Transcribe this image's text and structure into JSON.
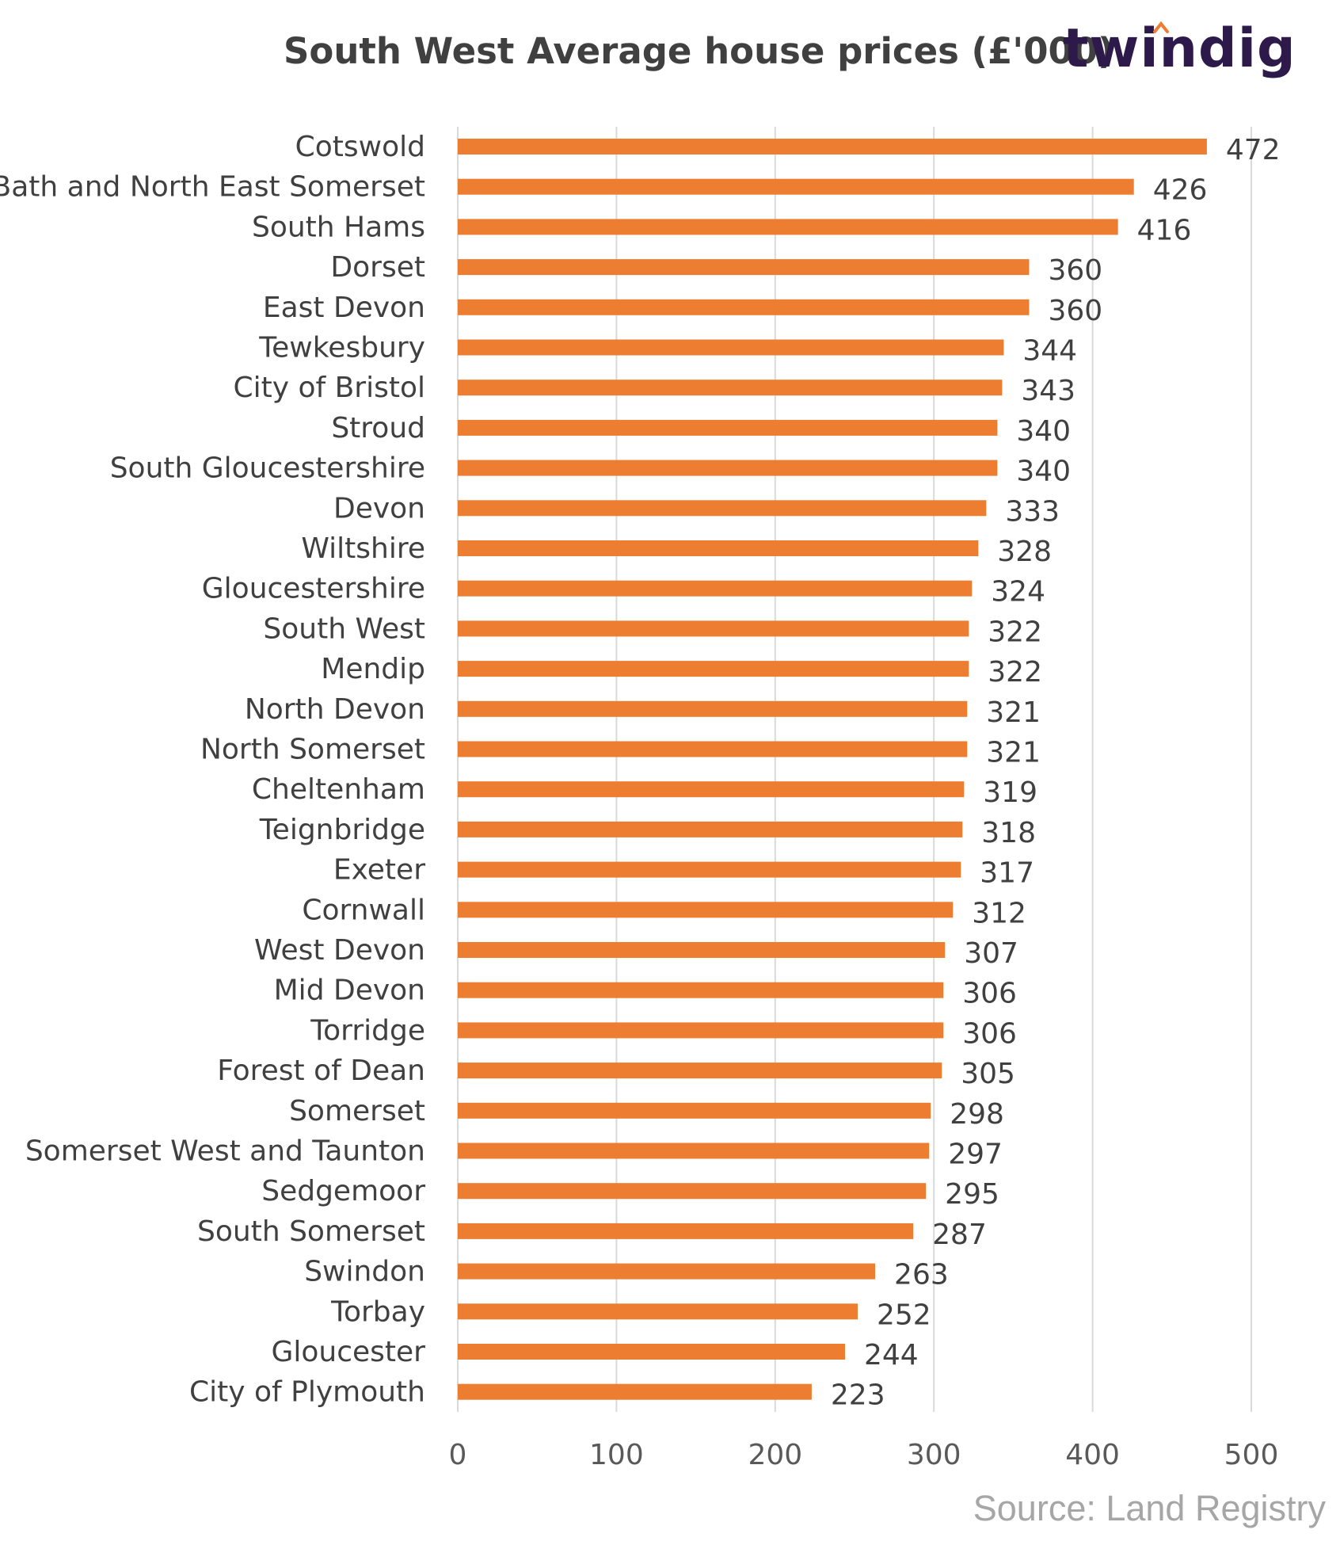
{
  "header": {
    "title": "South West Average house prices (£'000)",
    "logo_text": "twindig"
  },
  "footer": {
    "source": "Source: Land Registry"
  },
  "colors": {
    "bar": "#ED7D31",
    "grid": "#D9D9D9",
    "text": "#404040",
    "logo": "#2D1A4A",
    "logo_accent": "#ED7D31",
    "source": "#A6A6A6"
  },
  "chart_data": {
    "type": "bar",
    "orientation": "horizontal",
    "title": "South West Average house prices (£'000)",
    "categories": [
      "Cotswold",
      "Bath and North East Somerset",
      "South Hams",
      "Dorset",
      "East Devon",
      "Tewkesbury",
      "City of Bristol",
      "Stroud",
      "South Gloucestershire",
      "Devon",
      "Wiltshire",
      "Gloucestershire",
      "South West",
      "Mendip",
      "North Devon",
      "North Somerset",
      "Cheltenham",
      "Teignbridge",
      "Exeter",
      "Cornwall",
      "West Devon",
      "Mid Devon",
      "Torridge",
      "Forest of Dean",
      "Somerset",
      "Somerset West and Taunton",
      "Sedgemoor",
      "South Somerset",
      "Swindon",
      "Torbay",
      "Gloucester",
      "City of Plymouth"
    ],
    "values": [
      472,
      426,
      416,
      360,
      360,
      344,
      343,
      340,
      340,
      333,
      328,
      324,
      322,
      322,
      321,
      321,
      319,
      318,
      317,
      312,
      307,
      306,
      306,
      305,
      298,
      297,
      295,
      287,
      263,
      252,
      244,
      223
    ],
    "xlim": [
      0,
      500
    ],
    "x_ticks": [
      0,
      100,
      200,
      300,
      400,
      500
    ],
    "grid": true,
    "legend": "none",
    "data_labels": true
  }
}
